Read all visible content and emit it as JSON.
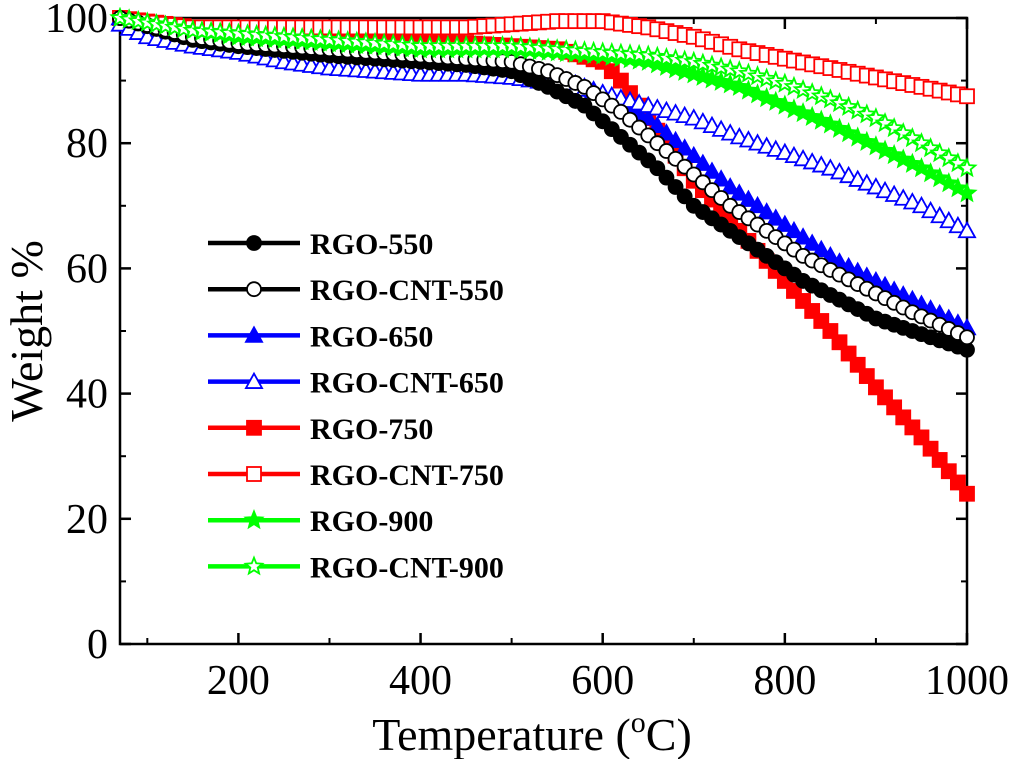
{
  "chart_data": {
    "type": "scatter",
    "title": "",
    "xlabel": "Temperature (",
    "xlabel_sup": "o",
    "xlabel_unit": "C)",
    "ylabel": "Weight %",
    "xlim": [
      70,
      1000
    ],
    "ylim": [
      0,
      100
    ],
    "xticks": [
      200,
      400,
      600,
      800,
      1000
    ],
    "xtick_labels": [
      "200",
      "400",
      "600",
      "800",
      "1000"
    ],
    "yticks": [
      0,
      20,
      40,
      60,
      80,
      100
    ],
    "ytick_labels": [
      "0",
      "20",
      "40",
      "60",
      "80",
      "100"
    ],
    "grid": false,
    "legend_position": "left-center",
    "series": [
      {
        "name": "RGO-550",
        "color": "#000000",
        "marker": "circle",
        "filled": true,
        "x": [
          70,
          150,
          200,
          300,
          400,
          450,
          500,
          540,
          580,
          620,
          660,
          700,
          740,
          780,
          820,
          860,
          900,
          940,
          1000
        ],
        "y": [
          100,
          96.5,
          95.5,
          94,
          93,
          92.5,
          91.5,
          89,
          86,
          81,
          76,
          70,
          66,
          62,
          58,
          55,
          52,
          50,
          47
        ]
      },
      {
        "name": "RGO-CNT-550",
        "color": "#000000",
        "marker": "circle",
        "filled": false,
        "x": [
          70,
          150,
          200,
          300,
          400,
          450,
          500,
          540,
          580,
          620,
          660,
          700,
          740,
          780,
          820,
          860,
          900,
          940,
          1000
        ],
        "y": [
          100,
          97,
          96,
          95,
          94,
          93.5,
          93,
          91.5,
          89,
          85,
          80,
          75,
          70,
          66,
          62,
          59,
          56,
          53,
          49
        ]
      },
      {
        "name": "RGO-650",
        "color": "#0000ff",
        "marker": "triangle",
        "filled": true,
        "x": [
          70,
          150,
          200,
          300,
          400,
          450,
          500,
          550,
          600,
          650,
          700,
          740,
          780,
          820,
          860,
          900,
          940,
          1000
        ],
        "y": [
          100,
          97,
          96,
          94.5,
          93.5,
          93,
          92,
          90.5,
          88,
          84,
          78,
          73,
          69,
          65,
          61,
          58,
          55,
          50.5
        ]
      },
      {
        "name": "RGO-CNT-650",
        "color": "#0000ff",
        "marker": "triangle",
        "filled": false,
        "x": [
          70,
          100,
          150,
          200,
          250,
          300,
          350,
          400,
          450,
          500,
          550,
          600,
          650,
          700,
          750,
          800,
          850,
          900,
          950,
          1000
        ],
        "y": [
          99,
          97,
          95.5,
          94.5,
          93,
          92,
          91.5,
          91,
          91,
          90.5,
          89.5,
          88,
          86,
          84,
          81,
          78.5,
          76,
          73,
          70,
          66
        ]
      },
      {
        "name": "RGO-750",
        "color": "#ff0000",
        "marker": "square",
        "filled": true,
        "x": [
          70,
          150,
          200,
          300,
          400,
          450,
          500,
          550,
          600,
          620,
          640,
          660,
          680,
          700,
          720,
          750,
          800,
          850,
          900,
          950,
          1000
        ],
        "y": [
          100,
          97.5,
          97,
          96.5,
          96,
          96,
          95.5,
          95,
          93,
          90,
          86,
          82,
          78,
          74,
          71,
          66,
          58,
          50,
          41,
          33,
          24
        ]
      },
      {
        "name": "RGO-CNT-750",
        "color": "#ff0000",
        "marker": "square",
        "filled": false,
        "x": [
          70,
          150,
          200,
          300,
          400,
          450,
          500,
          550,
          600,
          650,
          700,
          750,
          800,
          850,
          900,
          950,
          1000
        ],
        "y": [
          100,
          98.5,
          98.5,
          98.5,
          98.5,
          98.5,
          99,
          99.5,
          99.5,
          98.5,
          97,
          95,
          93.5,
          92,
          90.5,
          89,
          87.5
        ]
      },
      {
        "name": "RGO-900",
        "color": "#00ff00",
        "marker": "star",
        "filled": true,
        "x": [
          70,
          150,
          200,
          300,
          400,
          450,
          500,
          550,
          600,
          650,
          700,
          750,
          800,
          850,
          900,
          950,
          1000
        ],
        "y": [
          100,
          98,
          97,
          96,
          95,
          95,
          95,
          94.5,
          94,
          93,
          91,
          89,
          86,
          83,
          79.5,
          76,
          72
        ]
      },
      {
        "name": "RGO-CNT-900",
        "color": "#00ff00",
        "marker": "star",
        "filled": false,
        "x": [
          70,
          150,
          200,
          300,
          400,
          450,
          500,
          550,
          600,
          650,
          700,
          750,
          800,
          850,
          900,
          950,
          1000
        ],
        "y": [
          100,
          98,
          97.5,
          96.5,
          95.5,
          95.5,
          95.5,
          95,
          94.5,
          94,
          93,
          91.5,
          89.5,
          87,
          84,
          80,
          76
        ]
      }
    ]
  }
}
